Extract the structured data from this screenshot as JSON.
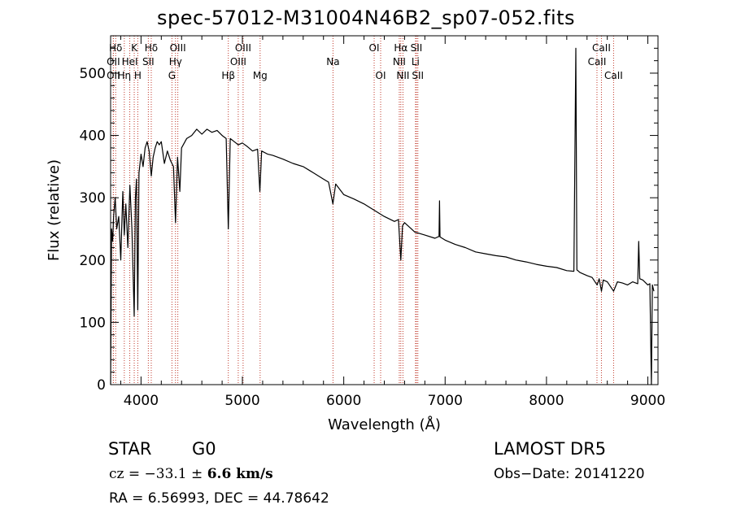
{
  "title": "spec-57012-M31004N46B2_sp07-052.fits",
  "info": {
    "class": "STAR",
    "subclass": "G0",
    "survey": "LAMOST DR5",
    "cz_prefix": "cz = ",
    "cz_value": "−33.1",
    "cz_pm": " ± ",
    "cz_err": "6.6",
    "cz_unit": " km/s",
    "obs_date": "Obs−Date: 20141220",
    "radec": "RA =    6.56993, DEC =  44.78642"
  },
  "chart_data": {
    "type": "line",
    "title": "spec-57012-M31004N46B2_sp07-052.fits",
    "xlabel": "Wavelength (Å)",
    "ylabel": "Flux (relative)",
    "xlim": [
      3700,
      9100
    ],
    "ylim": [
      0,
      560
    ],
    "xticks": [
      4000,
      5000,
      6000,
      7000,
      8000,
      9000
    ],
    "yticks": [
      0,
      100,
      200,
      300,
      400,
      500
    ],
    "grid": false,
    "series": [
      {
        "color": "#000000",
        "x": [
          3700,
          3710,
          3720,
          3730,
          3745,
          3760,
          3780,
          3800,
          3820,
          3835,
          3850,
          3870,
          3890,
          3910,
          3933,
          3945,
          3955,
          3968,
          3980,
          4000,
          4020,
          4040,
          4060,
          4080,
          4101,
          4120,
          4140,
          4160,
          4180,
          4200,
          4230,
          4260,
          4290,
          4320,
          4340,
          4360,
          4383,
          4400,
          4450,
          4500,
          4550,
          4600,
          4650,
          4700,
          4750,
          4800,
          4840,
          4861,
          4880,
          4920,
          4960,
          5000,
          5050,
          5100,
          5150,
          5172,
          5190,
          5250,
          5300,
          5400,
          5500,
          5600,
          5700,
          5800,
          5850,
          5893,
          5920,
          6000,
          6100,
          6200,
          6300,
          6400,
          6500,
          6540,
          6563,
          6580,
          6600,
          6700,
          6800,
          6900,
          6940,
          6945,
          6950,
          7000,
          7100,
          7200,
          7300,
          7400,
          7500,
          7600,
          7700,
          7800,
          7900,
          8000,
          8100,
          8200,
          8270,
          8290,
          8300,
          8310,
          8330,
          8400,
          8450,
          8500,
          8520,
          8542,
          8560,
          8600,
          8662,
          8700,
          8750,
          8800,
          8850,
          8900,
          8910,
          8920,
          8950,
          9000,
          9020,
          9035,
          9045,
          9060
        ],
        "y": [
          0,
          250,
          230,
          270,
          300,
          250,
          270,
          200,
          310,
          240,
          290,
          220,
          320,
          250,
          110,
          300,
          330,
          120,
          340,
          370,
          350,
          380,
          390,
          375,
          335,
          365,
          380,
          390,
          385,
          390,
          355,
          375,
          360,
          350,
          260,
          365,
          310,
          380,
          395,
          400,
          410,
          402,
          410,
          405,
          408,
          400,
          395,
          250,
          395,
          390,
          385,
          388,
          382,
          375,
          378,
          310,
          375,
          370,
          368,
          362,
          355,
          350,
          340,
          330,
          325,
          290,
          322,
          305,
          298,
          290,
          280,
          270,
          262,
          265,
          200,
          255,
          260,
          245,
          240,
          235,
          238,
          295,
          237,
          232,
          225,
          220,
          213,
          210,
          207,
          205,
          200,
          197,
          193,
          190,
          188,
          183,
          182,
          540,
          184,
          183,
          180,
          175,
          172,
          160,
          170,
          150,
          168,
          165,
          150,
          165,
          163,
          160,
          165,
          162,
          230,
          170,
          168,
          160,
          162,
          0,
          160,
          150
        ]
      }
    ],
    "line_markers": [
      {
        "label": "Hδ",
        "x": 3750,
        "row": 1
      },
      {
        "label": "OII",
        "x": 3727,
        "row": 2
      },
      {
        "label": "OII",
        "x": 3727,
        "row": 3
      },
      {
        "label": "Hη",
        "x": 3835,
        "row": 3
      },
      {
        "label": "K",
        "x": 3933,
        "row": 1
      },
      {
        "label": "HeI",
        "x": 3889,
        "row": 2
      },
      {
        "label": "H",
        "x": 3968,
        "row": 3
      },
      {
        "label": "Hδ",
        "x": 4101,
        "row": 1
      },
      {
        "label": "SII",
        "x": 4072,
        "row": 2
      },
      {
        "label": "OIII",
        "x": 4363,
        "row": 1
      },
      {
        "label": "Hγ",
        "x": 4340,
        "row": 2
      },
      {
        "label": "G",
        "x": 4305,
        "row": 3
      },
      {
        "label": "Hβ",
        "x": 4861,
        "row": 3
      },
      {
        "label": "OIII",
        "x": 5007,
        "row": 1
      },
      {
        "label": "OIII",
        "x": 4959,
        "row": 2
      },
      {
        "label": "Mg",
        "x": 5175,
        "row": 3
      },
      {
        "label": "Na",
        "x": 5894,
        "row": 2
      },
      {
        "label": "OI",
        "x": 6300,
        "row": 1
      },
      {
        "label": "OI",
        "x": 6364,
        "row": 3
      },
      {
        "label": "Hα",
        "x": 6563,
        "row": 1
      },
      {
        "label": "NII",
        "x": 6548,
        "row": 2
      },
      {
        "label": "NII",
        "x": 6584,
        "row": 3
      },
      {
        "label": "SII",
        "x": 6717,
        "row": 1
      },
      {
        "label": "Li",
        "x": 6708,
        "row": 2
      },
      {
        "label": "SII",
        "x": 6731,
        "row": 3
      },
      {
        "label": "CaII",
        "x": 8542,
        "row": 1
      },
      {
        "label": "CaII",
        "x": 8498,
        "row": 2
      },
      {
        "label": "CaII",
        "x": 8662,
        "row": 3
      }
    ],
    "marker_color": "#c0392b"
  }
}
